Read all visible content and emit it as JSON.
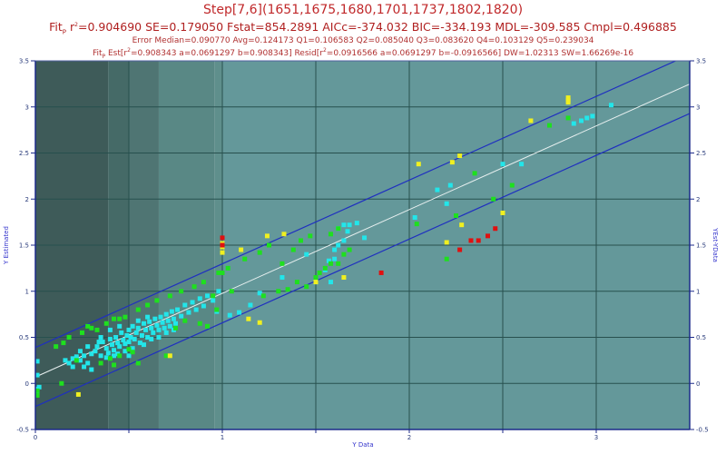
{
  "header": {
    "title": "Step[7,6](1651,1675,1680,1701,1737,1802,1820)",
    "fit_prefix": "Fit",
    "fit_sub": "P",
    "fit_stats": "=0.904690 SE=0.179050 Fstat=854.2891 AICc=-374.032 BIC=-334.193 MDL=-309.585 Cmpl=0.496885",
    "error_line": "Error Median=0.090770 Avg=0.124173 Q1=0.106583 Q2=0.085040 Q3=0.083620 Q4=0.103129 Q5=0.239034",
    "est_line_a": "Est[r",
    "est_line_b": "=0.908343 a=0.0691297 b=0.908343] Resid[r",
    "est_line_c": "=0.0916566 a=0.0691297 b=-0.0916566] DW=1.02313 SW=1.66269e-16"
  },
  "chart_data": {
    "type": "scatter",
    "title": "Step[7,6](1651,1675,1680,1701,1737,1802,1820)",
    "xlabel": "Y Data",
    "ylabel": "Y Estimated",
    "y2label": "YEst-YData",
    "xlim": [
      0,
      3.5
    ],
    "ylim": [
      -0.5,
      3.5
    ],
    "y2lim": [
      -0.5,
      3.5
    ],
    "x_ticks": [
      "0",
      "1",
      "2",
      "3"
    ],
    "x_tick_values": [
      0,
      1,
      2,
      3
    ],
    "x_grid": [
      0.5,
      1,
      1.5,
      2,
      2.5,
      3
    ],
    "y_ticks": [
      "-0.5",
      "0",
      "0.5",
      "1",
      "1.5",
      "2",
      "2.5",
      "3",
      "3.5"
    ],
    "y_tick_values": [
      -0.5,
      0,
      0.5,
      1,
      1.5,
      2,
      2.5,
      3,
      3.5
    ],
    "grid": true,
    "fit_line": {
      "intercept": 0.0691297,
      "slope": 0.908343,
      "color": "#e8f0f0"
    },
    "confidence_band": {
      "offset": 0.32,
      "color": "#1f2fc0"
    },
    "background_bands": [
      {
        "x0": 0.0,
        "x1": 0.39,
        "color": "#3e5b59"
      },
      {
        "x0": 0.39,
        "x1": 0.5,
        "color": "#456a67"
      },
      {
        "x0": 0.5,
        "x1": 0.66,
        "color": "#4f7573"
      },
      {
        "x0": 0.66,
        "x1": 0.96,
        "color": "#598885"
      },
      {
        "x0": 0.96,
        "x1": 1.0,
        "color": "#5f8f8c"
      },
      {
        "x0": 1.0,
        "x1": 3.5,
        "color": "#64989a"
      }
    ],
    "point_colors": {
      "cyan": "#22e6ea",
      "green": "#1ee01e",
      "yellow": "#f0f020",
      "red": "#e01010"
    },
    "series": [
      {
        "name": "cyan",
        "points": [
          [
            0.01,
            0.24
          ],
          [
            0.01,
            0.09
          ],
          [
            0.01,
            -0.06
          ],
          [
            0.01,
            -0.1
          ],
          [
            0.02,
            -0.04
          ],
          [
            0.16,
            0.25
          ],
          [
            0.18,
            0.22
          ],
          [
            0.2,
            0.27
          ],
          [
            0.22,
            0.29
          ],
          [
            0.24,
            0.25
          ],
          [
            0.26,
            0.3
          ],
          [
            0.28,
            0.22
          ],
          [
            0.3,
            0.32
          ],
          [
            0.26,
            0.18
          ],
          [
            0.3,
            0.15
          ],
          [
            0.32,
            0.35
          ],
          [
            0.33,
            0.4
          ],
          [
            0.35,
            0.3
          ],
          [
            0.36,
            0.45
          ],
          [
            0.38,
            0.38
          ],
          [
            0.39,
            0.33
          ],
          [
            0.4,
            0.48
          ],
          [
            0.41,
            0.42
          ],
          [
            0.42,
            0.36
          ],
          [
            0.43,
            0.5
          ],
          [
            0.44,
            0.44
          ],
          [
            0.45,
            0.4
          ],
          [
            0.46,
            0.55
          ],
          [
            0.47,
            0.47
          ],
          [
            0.48,
            0.43
          ],
          [
            0.49,
            0.52
          ],
          [
            0.5,
            0.58
          ],
          [
            0.5,
            0.45
          ],
          [
            0.51,
            0.5
          ],
          [
            0.52,
            0.62
          ],
          [
            0.53,
            0.48
          ],
          [
            0.54,
            0.55
          ],
          [
            0.55,
            0.6
          ],
          [
            0.56,
            0.44
          ],
          [
            0.57,
            0.52
          ],
          [
            0.58,
            0.65
          ],
          [
            0.59,
            0.58
          ],
          [
            0.6,
            0.5
          ],
          [
            0.61,
            0.67
          ],
          [
            0.62,
            0.6
          ],
          [
            0.63,
            0.55
          ],
          [
            0.64,
            0.7
          ],
          [
            0.65,
            0.63
          ],
          [
            0.66,
            0.58
          ],
          [
            0.67,
            0.72
          ],
          [
            0.68,
            0.66
          ],
          [
            0.69,
            0.6
          ],
          [
            0.7,
            0.75
          ],
          [
            0.71,
            0.68
          ],
          [
            0.72,
            0.62
          ],
          [
            0.73,
            0.78
          ],
          [
            0.74,
            0.7
          ],
          [
            0.75,
            0.65
          ],
          [
            0.76,
            0.8
          ],
          [
            0.78,
            0.73
          ],
          [
            0.8,
            0.85
          ],
          [
            0.82,
            0.77
          ],
          [
            0.84,
            0.88
          ],
          [
            0.86,
            0.8
          ],
          [
            0.88,
            0.92
          ],
          [
            0.9,
            0.84
          ],
          [
            0.92,
            0.95
          ],
          [
            0.95,
            0.9
          ],
          [
            0.98,
            1.0
          ],
          [
            0.97,
            0.78
          ],
          [
            0.35,
            0.5
          ],
          [
            0.4,
            0.58
          ],
          [
            0.45,
            0.62
          ],
          [
            0.55,
            0.68
          ],
          [
            0.6,
            0.72
          ],
          [
            0.38,
            0.28
          ],
          [
            0.42,
            0.3
          ],
          [
            0.48,
            0.35
          ],
          [
            0.52,
            0.38
          ],
          [
            0.58,
            0.42
          ],
          [
            0.28,
            0.4
          ],
          [
            0.34,
            0.45
          ],
          [
            0.44,
            0.32
          ],
          [
            0.5,
            0.3
          ],
          [
            0.62,
            0.48
          ],
          [
            0.66,
            0.5
          ],
          [
            0.7,
            0.55
          ],
          [
            0.74,
            0.58
          ],
          [
            0.24,
            0.35
          ],
          [
            0.2,
            0.18
          ],
          [
            1.04,
            0.74
          ],
          [
            1.09,
            0.77
          ],
          [
            1.15,
            0.85
          ],
          [
            1.2,
            0.98
          ],
          [
            1.32,
            1.15
          ],
          [
            1.45,
            1.4
          ],
          [
            1.5,
            1.1
          ],
          [
            1.55,
            1.23
          ],
          [
            1.57,
            1.33
          ],
          [
            1.6,
            1.35
          ],
          [
            1.6,
            1.45
          ],
          [
            1.62,
            1.5
          ],
          [
            1.65,
            1.55
          ],
          [
            1.67,
            1.65
          ],
          [
            1.68,
            1.72
          ],
          [
            1.72,
            1.74
          ],
          [
            1.76,
            1.58
          ],
          [
            1.62,
            1.68
          ],
          [
            1.65,
            1.72
          ],
          [
            1.58,
            1.1
          ],
          [
            2.03,
            1.8
          ],
          [
            2.15,
            2.1
          ],
          [
            2.2,
            1.95
          ],
          [
            2.22,
            2.15
          ],
          [
            2.5,
            2.38
          ],
          [
            2.6,
            2.38
          ],
          [
            2.88,
            2.82
          ],
          [
            2.92,
            2.85
          ],
          [
            2.95,
            2.88
          ],
          [
            2.98,
            2.9
          ],
          [
            3.08,
            3.02
          ]
        ]
      },
      {
        "name": "green",
        "points": [
          [
            0.01,
            -0.13
          ],
          [
            0.01,
            -0.08
          ],
          [
            0.11,
            0.4
          ],
          [
            0.15,
            0.44
          ],
          [
            0.18,
            0.5
          ],
          [
            0.22,
            0.25
          ],
          [
            0.25,
            0.55
          ],
          [
            0.3,
            0.6
          ],
          [
            0.33,
            0.58
          ],
          [
            0.28,
            0.62
          ],
          [
            0.4,
            0.27
          ],
          [
            0.42,
            0.2
          ],
          [
            0.45,
            0.3
          ],
          [
            0.5,
            0.37
          ],
          [
            0.52,
            0.34
          ],
          [
            0.38,
            0.65
          ],
          [
            0.45,
            0.7
          ],
          [
            0.55,
            0.8
          ],
          [
            0.6,
            0.85
          ],
          [
            0.65,
            0.9
          ],
          [
            0.72,
            0.95
          ],
          [
            0.78,
            1.0
          ],
          [
            0.85,
            1.05
          ],
          [
            0.9,
            1.1
          ],
          [
            0.95,
            0.95
          ],
          [
            0.97,
            0.8
          ],
          [
            0.35,
            0.22
          ],
          [
            0.42,
            0.7
          ],
          [
            0.48,
            0.72
          ],
          [
            0.7,
            0.3
          ],
          [
            0.55,
            0.22
          ],
          [
            0.14,
            0.0
          ],
          [
            0.75,
            0.6
          ],
          [
            0.8,
            0.68
          ],
          [
            0.88,
            0.65
          ],
          [
            0.92,
            0.62
          ],
          [
            1.03,
            1.25
          ],
          [
            1.12,
            1.35
          ],
          [
            1.2,
            1.42
          ],
          [
            1.25,
            1.5
          ],
          [
            1.32,
            1.3
          ],
          [
            1.38,
            1.45
          ],
          [
            1.42,
            1.55
          ],
          [
            1.47,
            1.6
          ],
          [
            1.52,
            1.2
          ],
          [
            1.55,
            1.25
          ],
          [
            1.58,
            1.3
          ],
          [
            1.62,
            1.3
          ],
          [
            1.65,
            1.4
          ],
          [
            1.68,
            1.45
          ],
          [
            1.58,
            1.62
          ],
          [
            1.62,
            1.68
          ],
          [
            1.5,
            1.15
          ],
          [
            1.45,
            1.05
          ],
          [
            1.3,
            1.0
          ],
          [
            1.22,
            0.95
          ],
          [
            1.35,
            1.02
          ],
          [
            1.4,
            1.1
          ],
          [
            1.05,
            1.0
          ],
          [
            0.98,
            1.2
          ],
          [
            1.0,
            1.2
          ],
          [
            2.04,
            1.73
          ],
          [
            2.25,
            1.82
          ],
          [
            2.35,
            2.28
          ],
          [
            2.45,
            2.0
          ],
          [
            2.55,
            2.15
          ],
          [
            2.75,
            2.8
          ],
          [
            2.85,
            2.88
          ],
          [
            2.2,
            1.35
          ]
        ]
      },
      {
        "name": "yellow",
        "points": [
          [
            0.23,
            -0.12
          ],
          [
            0.72,
            0.3
          ],
          [
            1.0,
            1.52
          ],
          [
            1.0,
            1.48
          ],
          [
            1.0,
            1.42
          ],
          [
            1.1,
            1.45
          ],
          [
            1.24,
            1.6
          ],
          [
            1.33,
            1.62
          ],
          [
            1.14,
            0.7
          ],
          [
            1.2,
            0.66
          ],
          [
            1.5,
            1.1
          ],
          [
            1.65,
            1.15
          ],
          [
            2.05,
            2.38
          ],
          [
            2.23,
            2.4
          ],
          [
            2.27,
            2.47
          ],
          [
            2.2,
            1.53
          ],
          [
            2.28,
            1.72
          ],
          [
            2.5,
            1.85
          ],
          [
            2.65,
            2.85
          ],
          [
            2.85,
            3.05
          ],
          [
            2.85,
            3.1
          ],
          [
            2.85,
            3.07
          ]
        ]
      },
      {
        "name": "red",
        "points": [
          [
            1.0,
            1.58
          ],
          [
            1.0,
            1.5
          ],
          [
            1.85,
            1.2
          ],
          [
            2.27,
            1.45
          ],
          [
            2.33,
            1.55
          ],
          [
            2.37,
            1.55
          ],
          [
            2.42,
            1.6
          ],
          [
            2.46,
            1.68
          ]
        ]
      }
    ]
  }
}
